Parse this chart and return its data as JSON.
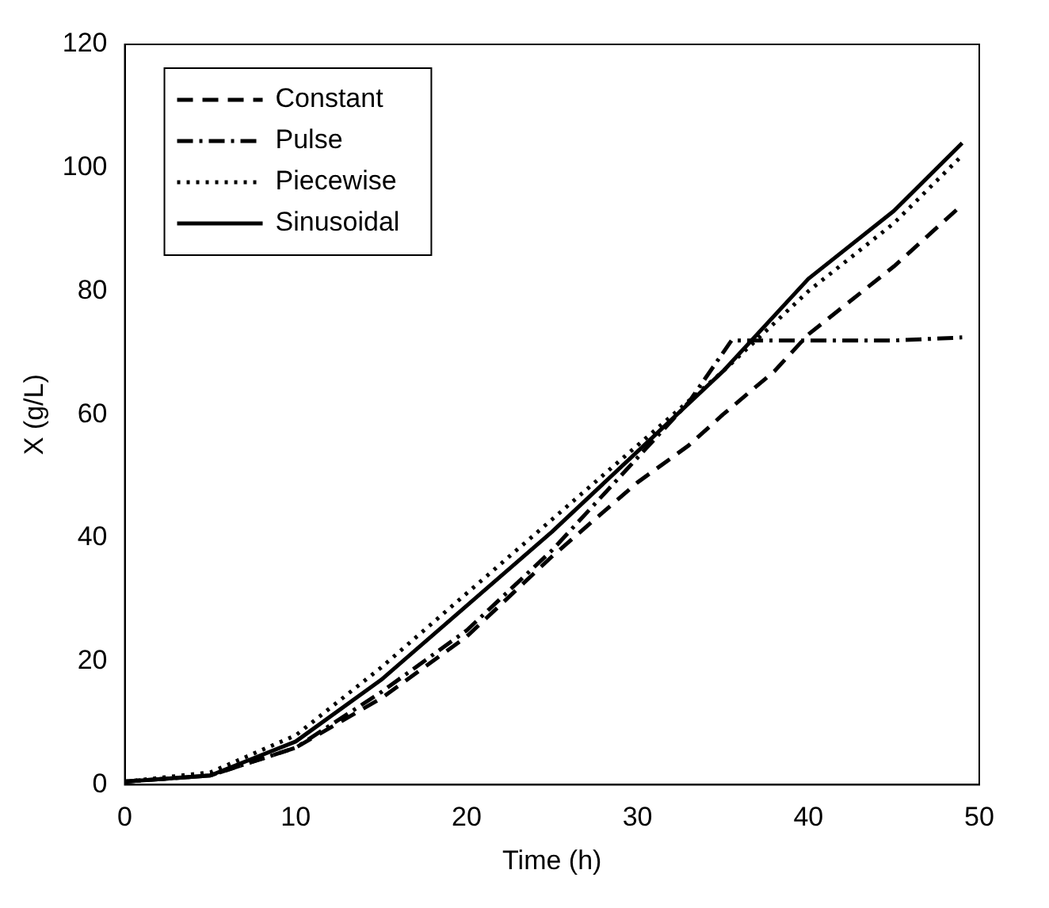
{
  "chart_data": {
    "type": "line",
    "xlabel": "Time (h)",
    "ylabel": "X (g/L)",
    "xlim": [
      0,
      50
    ],
    "ylim": [
      0,
      120
    ],
    "xticks": [
      0,
      10,
      20,
      30,
      40,
      50
    ],
    "yticks": [
      0,
      20,
      40,
      60,
      80,
      100,
      120
    ],
    "grid": false,
    "legend": "top left",
    "marker": "none",
    "series": [
      {
        "name": "Constant",
        "color": "#000000",
        "line_style": "dashed",
        "x": [
          0,
          5,
          10,
          15,
          20,
          25,
          30,
          33,
          35,
          38,
          40,
          45,
          49
        ],
        "values": [
          0.5,
          1.5,
          6,
          14,
          24,
          37,
          49,
          55,
          60,
          67,
          73,
          84,
          94
        ]
      },
      {
        "name": "Pulse",
        "color": "#000000",
        "line_style": "dashdot",
        "x": [
          0,
          5,
          10,
          15,
          20,
          25,
          30,
          33,
          35.5,
          40,
          45,
          49
        ],
        "values": [
          0.5,
          1.5,
          6,
          15,
          25,
          38,
          53,
          62,
          72,
          72,
          72,
          72.5
        ]
      },
      {
        "name": "Piecewise",
        "color": "#000000",
        "line_style": "dotted",
        "x": [
          0,
          5,
          10,
          15,
          20,
          25,
          30,
          35,
          40,
          45,
          49
        ],
        "values": [
          0.5,
          2,
          8,
          19,
          31,
          43,
          55,
          67,
          80,
          91,
          102
        ]
      },
      {
        "name": "Sinusoidal",
        "color": "#000000",
        "line_style": "solid",
        "x": [
          0,
          5,
          10,
          15,
          20,
          25,
          30,
          35,
          40,
          45,
          49
        ],
        "values": [
          0.5,
          1.5,
          7,
          17,
          29,
          41,
          54,
          67,
          82,
          93,
          104
        ]
      }
    ]
  }
}
